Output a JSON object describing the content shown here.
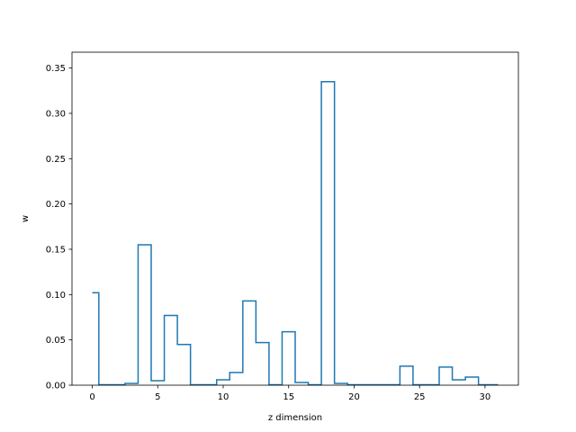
{
  "chart_data": {
    "type": "line",
    "drawstyle": "steps-mid",
    "title": "",
    "xlabel": "z dimension",
    "ylabel": "w",
    "xlim": [
      -1.55,
      32.55
    ],
    "ylim": [
      0,
      0.3675
    ],
    "xticks": [
      0,
      5,
      10,
      15,
      20,
      25,
      30
    ],
    "xtick_labels": [
      "0",
      "5",
      "10",
      "15",
      "20",
      "25",
      "30"
    ],
    "yticks": [
      0.0,
      0.05,
      0.1,
      0.15,
      0.2,
      0.25,
      0.3,
      0.35
    ],
    "ytick_labels": [
      "0.00",
      "0.05",
      "0.10",
      "0.15",
      "0.20",
      "0.25",
      "0.30",
      "0.35"
    ],
    "grid": false,
    "legend": "none",
    "color": "#1f77b4",
    "series": [
      {
        "x": [
          0,
          1,
          2,
          3,
          4,
          5,
          6,
          7,
          8,
          9,
          10,
          11,
          12,
          13,
          14,
          15,
          16,
          17,
          18,
          19,
          20,
          21,
          22,
          23,
          24,
          25,
          26,
          27,
          28,
          29,
          30,
          31
        ],
        "values": [
          0.102,
          0.0005,
          0.0005,
          0.002,
          0.155,
          0.005,
          0.077,
          0.045,
          0.0005,
          0.0005,
          0.006,
          0.014,
          0.093,
          0.047,
          0.0005,
          0.059,
          0.003,
          0.0005,
          0.335,
          0.002,
          0.0005,
          0.0005,
          0.0005,
          0.0005,
          0.021,
          0.0005,
          0.0005,
          0.02,
          0.006,
          0.009,
          0.0005,
          0.0005
        ]
      }
    ]
  }
}
